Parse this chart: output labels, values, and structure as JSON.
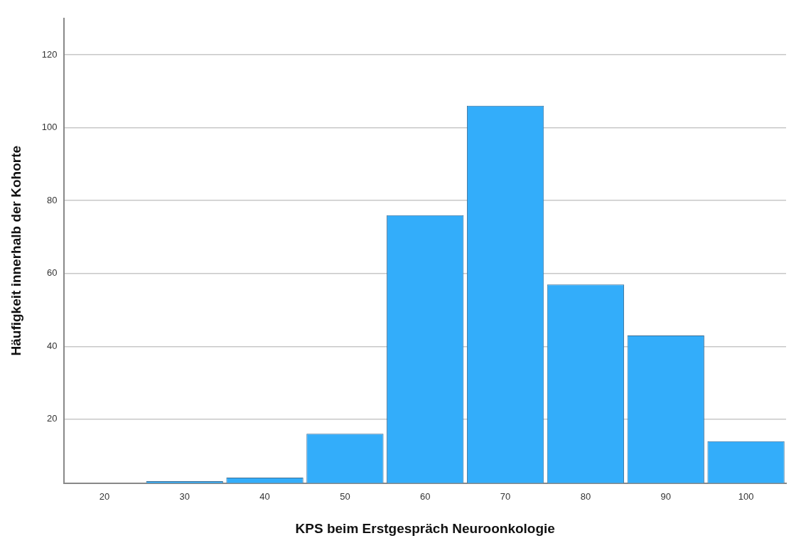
{
  "chart_data": {
    "type": "bar",
    "xlabel": "KPS beim Erstgespräch Neuroonkologie",
    "ylabel": "Häufigkeit innerhalb der Kohorte",
    "categories": [
      "20",
      "30",
      "40",
      "50",
      "60",
      "70",
      "80",
      "90",
      "100"
    ],
    "values": [
      null,
      3,
      4,
      16,
      76,
      106,
      57,
      43,
      14
    ],
    "color": "#33adfa",
    "ylim": [
      2.5,
      130
    ],
    "yticks": [
      20,
      40,
      60,
      80,
      100,
      120
    ],
    "grid": "y",
    "legend": false
  }
}
